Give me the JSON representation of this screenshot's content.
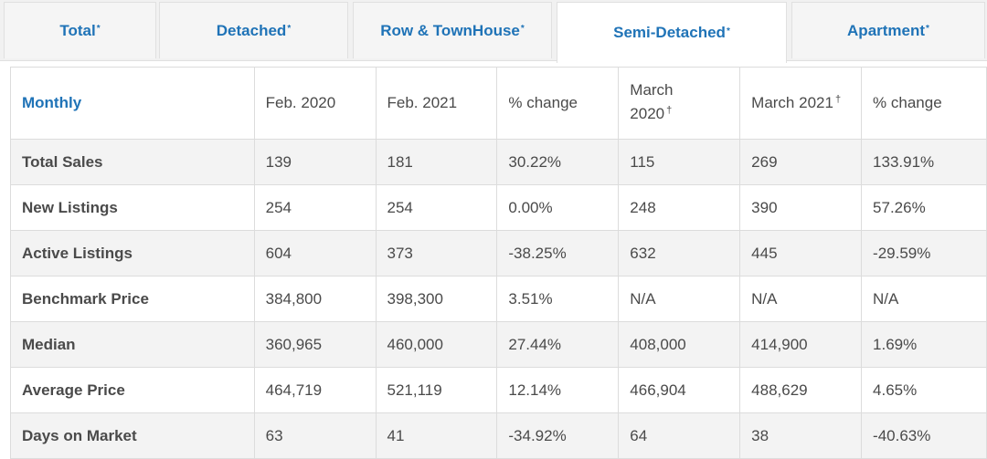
{
  "tabs": [
    {
      "label": "Total",
      "mark": "*"
    },
    {
      "label": "Detached",
      "mark": "*"
    },
    {
      "label": "Row & TownHouse",
      "mark": "*"
    },
    {
      "label": "Semi-Detached",
      "mark": "*"
    },
    {
      "label": "Apartment",
      "mark": "*"
    }
  ],
  "active_tab": "Semi-Detached",
  "table": {
    "headers": {
      "monthly": "Monthly",
      "feb2020": "Feb. 2020",
      "feb2021": "Feb. 2021",
      "change1": "% change",
      "mar2020_line1": "March",
      "mar2020_line2": "2020",
      "mar2020_mark": "†",
      "mar2021": "March 2021",
      "mar2021_mark": "†",
      "change2": "% change"
    },
    "rows": [
      {
        "label": "Total Sales",
        "v": [
          "139",
          "181",
          "30.22%",
          "115",
          "269",
          "133.91%"
        ]
      },
      {
        "label": "New Listings",
        "v": [
          "254",
          "254",
          "0.00%",
          "248",
          "390",
          "57.26%"
        ]
      },
      {
        "label": "Active Listings",
        "v": [
          "604",
          "373",
          "-38.25%",
          "632",
          "445",
          "-29.59%"
        ]
      },
      {
        "label": "Benchmark Price",
        "v": [
          "384,800",
          "398,300",
          "3.51%",
          "N/A",
          "N/A",
          "N/A"
        ]
      },
      {
        "label": "Median",
        "v": [
          "360,965",
          "460,000",
          "27.44%",
          "408,000",
          "414,900",
          "1.69%"
        ]
      },
      {
        "label": "Average Price",
        "v": [
          "464,719",
          "521,119",
          "12.14%",
          "466,904",
          "488,629",
          "4.65%"
        ]
      },
      {
        "label": "Days on Market",
        "v": [
          "63",
          "41",
          "-34.92%",
          "64",
          "38",
          "-40.63%"
        ]
      }
    ]
  },
  "colors": {
    "accent": "#1f73b7",
    "text": "#4a4a4a",
    "stripe": "#f3f3f3",
    "border": "#dcdcdc"
  }
}
